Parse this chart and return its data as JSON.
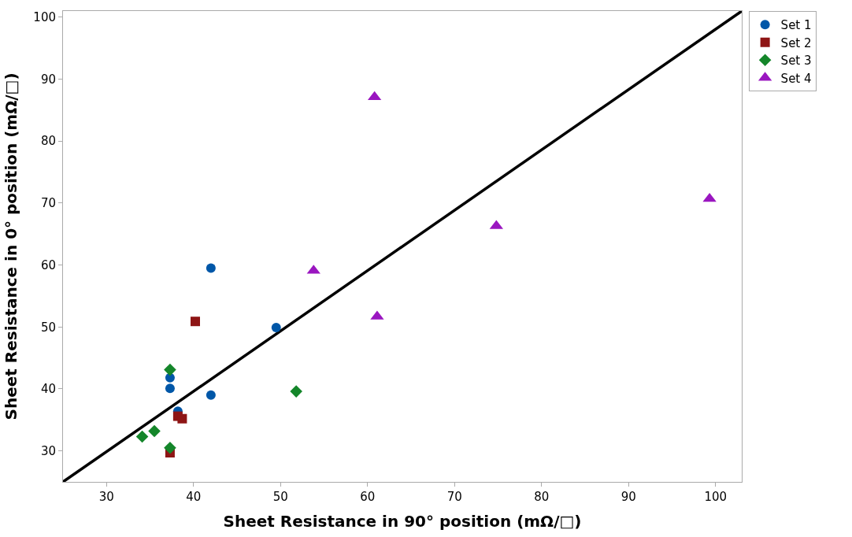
{
  "chart_data": {
    "type": "scatter",
    "xlabel": "Sheet Resistance in 90° position (mΩ/□)",
    "ylabel": "Sheet Resistance in 0° position (mΩ/□)",
    "xlim": [
      25,
      103
    ],
    "ylim": [
      25,
      101
    ],
    "xticks": [
      30,
      40,
      50,
      60,
      70,
      80,
      90,
      100
    ],
    "yticks": [
      30,
      40,
      50,
      60,
      70,
      80,
      90,
      100
    ],
    "legend": "top right",
    "series": [
      {
        "name": "Set 1",
        "color": "#0057a8",
        "marker": "circle",
        "x": [
          42.0,
          49.5,
          37.3,
          37.3,
          42.0,
          38.2
        ],
        "values": [
          59.5,
          49.9,
          41.8,
          40.1,
          39.0,
          36.4
        ]
      },
      {
        "name": "Set 2",
        "color": "#8e1515",
        "marker": "square",
        "x": [
          40.2,
          38.2,
          38.7,
          37.3
        ],
        "values": [
          50.9,
          35.6,
          35.2,
          29.7
        ]
      },
      {
        "name": "Set 3",
        "color": "#14862a",
        "marker": "diamond",
        "x": [
          37.3,
          51.8,
          35.5,
          34.1,
          37.3
        ],
        "values": [
          43.1,
          39.6,
          33.2,
          32.3,
          30.5
        ]
      },
      {
        "name": "Set 4",
        "color": "#9a16c0",
        "marker": "triangle",
        "x": [
          60.8,
          53.8,
          61.1,
          74.8,
          99.3
        ],
        "values": [
          87.1,
          59.1,
          51.7,
          66.3,
          70.7
        ]
      },
      {
        "type": "line",
        "color": "#000000",
        "marker": "none",
        "line_style": "solid",
        "x": [
          25,
          103
        ],
        "values": [
          25,
          101
        ]
      }
    ]
  }
}
